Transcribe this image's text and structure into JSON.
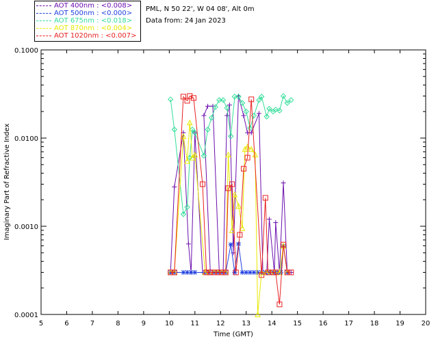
{
  "header": {
    "site_line": "PML, N 50 22', W 04 08', Alt 0m",
    "date_line": "Data from: 24 Jan 2023"
  },
  "legend": [
    {
      "label": "AOT  400nm : <0.008>",
      "color": "#6a0dad"
    },
    {
      "label": "AOT  500nm : <0.000>",
      "color": "#1f3fe0"
    },
    {
      "label": "AOT  675nm : <0.018>",
      "color": "#33dd99"
    },
    {
      "label": "AOT  870nm : <0.004>",
      "color": "#e8e800"
    },
    {
      "label": "AOT 1020nm : <0.007>",
      "color": "#e82020"
    }
  ],
  "chart_data": {
    "type": "line",
    "title": "",
    "xlabel": "Time (GMT)",
    "ylabel": "Imaginary Part of Refractive Index",
    "xlim": [
      5,
      20
    ],
    "ylim": [
      0.0001,
      0.1
    ],
    "yscale": "log",
    "xticks": [
      5,
      6,
      7,
      8,
      9,
      10,
      11,
      12,
      13,
      14,
      15,
      16,
      17,
      18,
      19,
      20
    ],
    "yticks": [
      0.0001,
      0.001,
      0.01,
      0.1
    ],
    "ytick_labels": [
      "0.0001",
      "0.0010",
      "0.0100",
      "0.1000"
    ],
    "series": [
      {
        "name": "AOT  400nm : <0.008>",
        "color": "#6a0dad",
        "marker": "plus",
        "points": [
          [
            10.05,
            0.0003
          ],
          [
            10.2,
            0.0028
          ],
          [
            10.55,
            0.0115
          ],
          [
            10.75,
            0.00063
          ],
          [
            10.85,
            0.0003
          ],
          [
            11.0,
            0.0115
          ],
          [
            11.3,
            0.0003
          ],
          [
            11.5,
            0.0003
          ],
          [
            11.6,
            0.0003
          ],
          [
            11.35,
            0.018
          ],
          [
            11.5,
            0.023
          ],
          [
            11.7,
            0.023
          ],
          [
            11.95,
            0.0003
          ],
          [
            12.1,
            0.0003
          ],
          [
            12.25,
            0.018
          ],
          [
            12.35,
            0.0237
          ],
          [
            12.5,
            0.0005
          ],
          [
            12.7,
            0.03
          ],
          [
            12.9,
            0.018
          ],
          [
            13.05,
            0.0115
          ],
          [
            13.2,
            0.0115
          ],
          [
            13.5,
            0.019
          ],
          [
            13.65,
            0.0003
          ],
          [
            13.8,
            0.0003
          ],
          [
            13.9,
            0.0012
          ],
          [
            14.1,
            0.0003
          ],
          [
            14.15,
            0.0011
          ],
          [
            14.3,
            0.0003
          ],
          [
            14.45,
            0.0031
          ],
          [
            14.6,
            0.0003
          ],
          [
            14.75,
            0.0003
          ]
        ]
      },
      {
        "name": "AOT  500nm : <0.000>",
        "color": "#1f3fe0",
        "marker": "asterisk",
        "points": [
          [
            10.05,
            0.0003
          ],
          [
            10.2,
            0.0003
          ],
          [
            10.55,
            0.0003
          ],
          [
            10.7,
            0.0003
          ],
          [
            10.85,
            0.0003
          ],
          [
            11.0,
            0.0003
          ],
          [
            11.4,
            0.0003
          ],
          [
            11.55,
            0.0003
          ],
          [
            11.75,
            0.0003
          ],
          [
            11.9,
            0.0003
          ],
          [
            12.05,
            0.0003
          ],
          [
            12.2,
            0.0003
          ],
          [
            12.4,
            0.00062
          ],
          [
            12.55,
            0.0003
          ],
          [
            12.7,
            0.00063
          ],
          [
            12.85,
            0.0003
          ],
          [
            13.0,
            0.0003
          ],
          [
            13.15,
            0.0003
          ],
          [
            13.3,
            0.0003
          ],
          [
            13.45,
            0.0003
          ],
          [
            13.6,
            0.0003
          ],
          [
            13.75,
            0.0003
          ],
          [
            13.9,
            0.0003
          ],
          [
            14.05,
            0.0003
          ],
          [
            14.2,
            0.0003
          ],
          [
            14.35,
            0.0003
          ],
          [
            14.45,
            0.0006
          ],
          [
            14.6,
            0.0003
          ]
        ]
      },
      {
        "name": "AOT  675nm : <0.018>",
        "color": "#33dd99",
        "marker": "diamond",
        "points": [
          [
            10.05,
            0.0275
          ],
          [
            10.2,
            0.0125
          ],
          [
            10.55,
            0.00137
          ],
          [
            10.7,
            0.00165
          ],
          [
            10.8,
            0.006
          ],
          [
            10.9,
            0.0125
          ],
          [
            11.0,
            0.0115
          ],
          [
            11.35,
            0.0063
          ],
          [
            11.5,
            0.0125
          ],
          [
            11.65,
            0.017
          ],
          [
            11.8,
            0.0225
          ],
          [
            11.95,
            0.027
          ],
          [
            12.1,
            0.027
          ],
          [
            12.25,
            0.022
          ],
          [
            12.4,
            0.0105
          ],
          [
            12.55,
            0.0295
          ],
          [
            12.7,
            0.0295
          ],
          [
            12.85,
            0.025
          ],
          [
            13.0,
            0.02
          ],
          [
            13.15,
            0.013
          ],
          [
            13.3,
            0.018
          ],
          [
            13.5,
            0.027
          ],
          [
            13.6,
            0.0295
          ],
          [
            13.8,
            0.0175
          ],
          [
            13.9,
            0.0215
          ],
          [
            14.05,
            0.02
          ],
          [
            14.15,
            0.021
          ],
          [
            14.3,
            0.0205
          ],
          [
            14.45,
            0.03
          ],
          [
            14.6,
            0.025
          ],
          [
            14.75,
            0.027
          ]
        ]
      },
      {
        "name": "AOT  870nm : <0.004>",
        "color": "#e8e800",
        "marker": "triangle",
        "points": [
          [
            10.05,
            0.0003
          ],
          [
            10.2,
            0.0003
          ],
          [
            10.55,
            0.0105
          ],
          [
            10.7,
            0.0055
          ],
          [
            10.8,
            0.015
          ],
          [
            10.9,
            0.006
          ],
          [
            11.0,
            0.0065
          ],
          [
            11.4,
            0.0003
          ],
          [
            11.55,
            0.0003
          ],
          [
            11.75,
            0.0003
          ],
          [
            11.9,
            0.0003
          ],
          [
            12.05,
            0.0003
          ],
          [
            12.2,
            0.0003
          ],
          [
            12.3,
            0.0065
          ],
          [
            12.45,
            0.0009
          ],
          [
            12.55,
            0.0023
          ],
          [
            12.7,
            0.0017
          ],
          [
            12.85,
            0.00095
          ],
          [
            12.95,
            0.0075
          ],
          [
            13.05,
            0.008
          ],
          [
            13.2,
            0.0075
          ],
          [
            13.35,
            0.0065
          ],
          [
            13.45,
            0.0001
          ],
          [
            13.6,
            0.0003
          ],
          [
            13.8,
            0.0003
          ],
          [
            13.95,
            0.0003
          ],
          [
            14.1,
            0.0003
          ],
          [
            14.3,
            0.0003
          ],
          [
            14.45,
            0.0006
          ],
          [
            14.6,
            0.0003
          ]
        ]
      },
      {
        "name": "AOT 1020nm : <0.007>",
        "color": "#e82020",
        "marker": "square",
        "points": [
          [
            10.05,
            0.0003
          ],
          [
            10.2,
            0.0003
          ],
          [
            10.55,
            0.0295
          ],
          [
            10.7,
            0.0265
          ],
          [
            10.8,
            0.03
          ],
          [
            10.95,
            0.0285
          ],
          [
            11.3,
            0.003
          ],
          [
            11.45,
            0.0003
          ],
          [
            11.6,
            0.0003
          ],
          [
            11.75,
            0.0003
          ],
          [
            11.9,
            0.0003
          ],
          [
            12.05,
            0.0003
          ],
          [
            12.2,
            0.0003
          ],
          [
            12.3,
            0.0027
          ],
          [
            12.45,
            0.003
          ],
          [
            12.6,
            0.0003
          ],
          [
            12.75,
            0.0008
          ],
          [
            12.9,
            0.0045
          ],
          [
            13.05,
            0.006
          ],
          [
            13.2,
            0.0275
          ],
          [
            13.6,
            0.00028
          ],
          [
            13.75,
            0.0021
          ],
          [
            13.85,
            0.0003
          ],
          [
            14.05,
            0.0003
          ],
          [
            14.15,
            0.0003
          ],
          [
            14.3,
            0.00013
          ],
          [
            14.45,
            0.00062
          ],
          [
            14.6,
            0.0003
          ],
          [
            14.75,
            0.0003
          ]
        ]
      }
    ]
  }
}
